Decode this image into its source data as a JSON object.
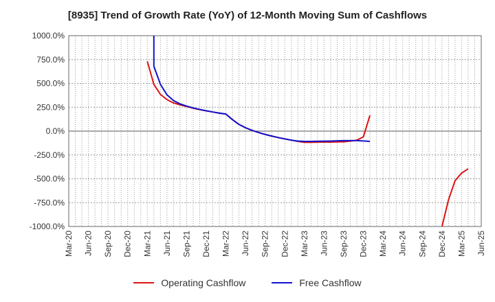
{
  "chart_data": {
    "type": "line",
    "title": "[8935]  Trend of Growth Rate (YoY) of 12-Month Moving Sum of Cashflows",
    "xlabel": "",
    "ylabel": "",
    "x_ticks": [
      "Mar-20",
      "Jun-20",
      "Sep-20",
      "Dec-20",
      "Mar-21",
      "Jun-21",
      "Sep-21",
      "Dec-21",
      "Mar-22",
      "Jun-22",
      "Sep-22",
      "Dec-22",
      "Mar-23",
      "Jun-23",
      "Sep-23",
      "Dec-23",
      "Mar-24",
      "Jun-24",
      "Sep-24",
      "Dec-24",
      "Mar-25",
      "Jun-25"
    ],
    "y_ticks": [
      "1000.0%",
      "750.0%",
      "500.0%",
      "250.0%",
      "0.0%",
      "-250.0%",
      "-500.0%",
      "-750.0%",
      "-1000.0%"
    ],
    "ylim": [
      -1000,
      1000
    ],
    "y_unit": "%",
    "grid": true,
    "legend_position": "bottom",
    "series": [
      {
        "name": "Operating Cashflow",
        "color": "#dd1111",
        "segments": [
          [
            {
              "x": "Mar-21",
              "y": 730
            },
            {
              "x": "Apr-21",
              "y": 490
            },
            {
              "x": "May-21",
              "y": 385
            },
            {
              "x": "Jun-21",
              "y": 330
            },
            {
              "x": "Jul-21",
              "y": 295
            },
            {
              "x": "Aug-21",
              "y": 275
            },
            {
              "x": "Sep-21",
              "y": 258
            },
            {
              "x": "Oct-21",
              "y": 240
            },
            {
              "x": "Nov-21",
              "y": 225
            },
            {
              "x": "Dec-21",
              "y": 212
            },
            {
              "x": "Jan-22",
              "y": 200
            },
            {
              "x": "Feb-22",
              "y": 188
            },
            {
              "x": "Mar-22",
              "y": 178
            },
            {
              "x": "Apr-22",
              "y": 120
            },
            {
              "x": "May-22",
              "y": 70
            },
            {
              "x": "Jun-22",
              "y": 35
            },
            {
              "x": "Jul-22",
              "y": 8
            },
            {
              "x": "Aug-22",
              "y": -15
            },
            {
              "x": "Sep-22",
              "y": -35
            },
            {
              "x": "Oct-22",
              "y": -52
            },
            {
              "x": "Nov-22",
              "y": -68
            },
            {
              "x": "Dec-22",
              "y": -82
            },
            {
              "x": "Jan-23",
              "y": -95
            },
            {
              "x": "Feb-23",
              "y": -108
            },
            {
              "x": "Mar-23",
              "y": -118
            },
            {
              "x": "Apr-23",
              "y": -118
            },
            {
              "x": "May-23",
              "y": -116
            },
            {
              "x": "Jun-23",
              "y": -115
            },
            {
              "x": "Jul-23",
              "y": -115
            },
            {
              "x": "Aug-23",
              "y": -113
            },
            {
              "x": "Sep-23",
              "y": -112
            },
            {
              "x": "Oct-23",
              "y": -105
            },
            {
              "x": "Nov-23",
              "y": -95
            },
            {
              "x": "Dec-23",
              "y": -60
            },
            {
              "x": "Jan-24",
              "y": 165
            }
          ],
          [
            {
              "x": "Dec-24",
              "y": -1000
            },
            {
              "x": "Jan-25",
              "y": -720
            },
            {
              "x": "Feb-25",
              "y": -520
            },
            {
              "x": "Mar-25",
              "y": -440
            },
            {
              "x": "Apr-25",
              "y": -395
            }
          ]
        ]
      },
      {
        "name": "Free Cashflow",
        "color": "#1111cc",
        "segments": [
          [
            {
              "x": "Apr-21",
              "y": 1000
            },
            {
              "x": "Apr-21",
              "y": 680
            },
            {
              "x": "May-21",
              "y": 490
            },
            {
              "x": "Jun-21",
              "y": 380
            },
            {
              "x": "Jul-21",
              "y": 320
            },
            {
              "x": "Aug-21",
              "y": 285
            },
            {
              "x": "Sep-21",
              "y": 262
            },
            {
              "x": "Oct-21",
              "y": 243
            },
            {
              "x": "Nov-21",
              "y": 227
            },
            {
              "x": "Dec-21",
              "y": 213
            },
            {
              "x": "Jan-22",
              "y": 200
            },
            {
              "x": "Feb-22",
              "y": 189
            },
            {
              "x": "Mar-22",
              "y": 179
            },
            {
              "x": "Apr-22",
              "y": 120
            },
            {
              "x": "May-22",
              "y": 70
            },
            {
              "x": "Jun-22",
              "y": 35
            },
            {
              "x": "Jul-22",
              "y": 8
            },
            {
              "x": "Aug-22",
              "y": -15
            },
            {
              "x": "Sep-22",
              "y": -35
            },
            {
              "x": "Oct-22",
              "y": -52
            },
            {
              "x": "Nov-22",
              "y": -68
            },
            {
              "x": "Dec-22",
              "y": -82
            },
            {
              "x": "Jan-23",
              "y": -95
            },
            {
              "x": "Feb-23",
              "y": -104
            },
            {
              "x": "Mar-23",
              "y": -108
            },
            {
              "x": "Apr-23",
              "y": -108
            },
            {
              "x": "May-23",
              "y": -106
            },
            {
              "x": "Jun-23",
              "y": -105
            },
            {
              "x": "Jul-23",
              "y": -104
            },
            {
              "x": "Aug-23",
              "y": -102
            },
            {
              "x": "Sep-23",
              "y": -100
            },
            {
              "x": "Oct-23",
              "y": -100
            },
            {
              "x": "Nov-23",
              "y": -100
            },
            {
              "x": "Dec-23",
              "y": -103
            },
            {
              "x": "Jan-24",
              "y": -108
            }
          ]
        ]
      }
    ]
  }
}
